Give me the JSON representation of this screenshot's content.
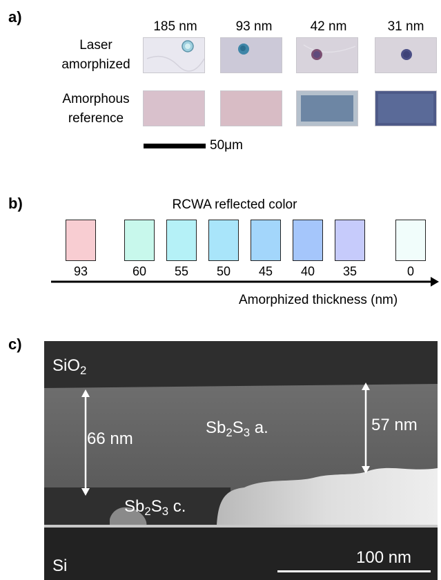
{
  "panel_a": {
    "label": "a)",
    "thicknesses": [
      "185 nm",
      "93 nm",
      "42 nm",
      "31 nm"
    ],
    "row_laser": [
      "Laser",
      "amorphized"
    ],
    "row_reference": [
      "Amorphous",
      "reference"
    ],
    "scale_bar": "50μm"
  },
  "panel_b": {
    "label": "b)",
    "title": "RCWA reflected color",
    "axis_label": "Amorphized thickness (nm)",
    "swatches": [
      {
        "value": "93",
        "color": "#f8cdd2"
      },
      {
        "value": "60",
        "color": "#c8f8ec"
      },
      {
        "value": "55",
        "color": "#b5f1f7"
      },
      {
        "value": "50",
        "color": "#a9e5fa"
      },
      {
        "value": "45",
        "color": "#a3d6fb"
      },
      {
        "value": "40",
        "color": "#a5c6fb"
      },
      {
        "value": "35",
        "color": "#c6cbfb"
      },
      {
        "value": "0",
        "color": "#f1fdfb"
      }
    ]
  },
  "panel_c": {
    "label": "c)",
    "sio2_base": "SiO",
    "sio2_sub": "2",
    "si": "Si",
    "left_thickness": "66 nm",
    "right_thickness": "57 nm",
    "amorphous_base": "Sb",
    "amorphous_sub1": "2",
    "amorphous_mid": "S",
    "amorphous_sub2": "3",
    "amorphous_tail": " a.",
    "crystal_base": "Sb",
    "crystal_sub1": "2",
    "crystal_mid": "S",
    "crystal_sub2": "3",
    "crystal_tail": " c.",
    "scale_bar": "100 nm"
  }
}
